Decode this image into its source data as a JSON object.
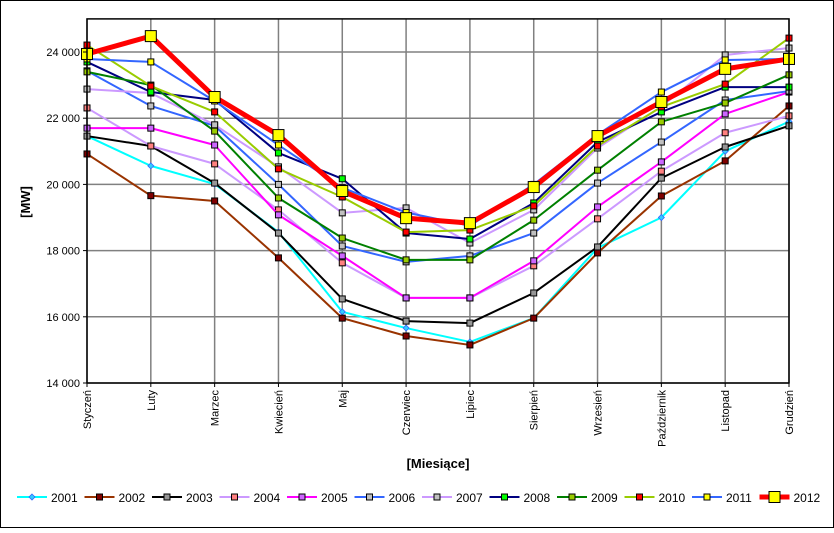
{
  "chart_data": {
    "type": "line",
    "title": "",
    "xlabel": "[Miesiące]",
    "ylabel": "[MW]",
    "ylim": [
      14000,
      25000
    ],
    "yticks": [
      14000,
      16000,
      18000,
      20000,
      22000,
      24000
    ],
    "ytick_labels": [
      "14 000",
      "16 000",
      "18 000",
      "20 000",
      "22 000",
      "24 000"
    ],
    "grid": true,
    "legend_position": "bottom",
    "categories": [
      "Styczeń",
      "Luty",
      "Marzec",
      "Kwiecień",
      "Maj",
      "Czerwiec",
      "Lipiec",
      "Sierpień",
      "Wrzesień",
      "Październik",
      "Listopad",
      "Grudzień"
    ],
    "series": [
      {
        "name": "2001",
        "line": "#00ffff",
        "marker": "#33ccff",
        "shape": "diamond",
        "width": 2,
        "values": [
          21460,
          20560,
          20010,
          18560,
          16150,
          15660,
          15240,
          15960,
          18080,
          19000,
          21000,
          21900
        ]
      },
      {
        "name": "2002",
        "line": "#993300",
        "marker": "#800000",
        "shape": "square",
        "width": 2,
        "values": [
          20920,
          19660,
          19500,
          17780,
          15960,
          15420,
          15150,
          15960,
          17930,
          19650,
          20710,
          22370
        ]
      },
      {
        "name": "2003",
        "line": "#000000",
        "marker": "#969696",
        "shape": "square",
        "width": 2,
        "values": [
          21460,
          21160,
          20040,
          18530,
          16540,
          15870,
          15810,
          16720,
          18110,
          20190,
          21130,
          21770
        ]
      },
      {
        "name": "2004",
        "line": "#cc99ff",
        "marker": "#ff8080",
        "shape": "square",
        "width": 2,
        "values": [
          22310,
          21160,
          20620,
          19230,
          17630,
          16570,
          16570,
          17540,
          18960,
          20400,
          21560,
          22070
        ]
      },
      {
        "name": "2005",
        "line": "#ff00ff",
        "marker": "#cc66ff",
        "shape": "square",
        "width": 2,
        "values": [
          21700,
          21700,
          21190,
          19080,
          17840,
          16570,
          16570,
          17690,
          19320,
          20680,
          22130,
          22790
        ]
      },
      {
        "name": "2006",
        "line": "#3366ff",
        "marker": "#c0c0c0",
        "shape": "square",
        "width": 2,
        "values": [
          23430,
          22370,
          21770,
          20000,
          18140,
          17660,
          17840,
          18530,
          20040,
          21280,
          22550,
          22820
        ]
      },
      {
        "name": "2007",
        "line": "#cc99ff",
        "marker": "#c0c0c0",
        "shape": "square",
        "width": 2,
        "values": [
          22880,
          22760,
          21800,
          20530,
          19140,
          19290,
          18230,
          19230,
          21100,
          22350,
          23910,
          24120
        ]
      },
      {
        "name": "2008",
        "line": "#000080",
        "marker": "#00ff00",
        "shape": "square",
        "width": 2,
        "values": [
          23700,
          22790,
          22550,
          20950,
          20170,
          18530,
          18350,
          19440,
          21280,
          22190,
          22940,
          22940
        ]
      },
      {
        "name": "2009",
        "line": "#008000",
        "marker": "#99cc00",
        "shape": "square",
        "width": 2,
        "values": [
          23400,
          23000,
          21610,
          19590,
          18380,
          17720,
          17720,
          18920,
          20430,
          21890,
          22460,
          23310
        ]
      },
      {
        "name": "2010",
        "line": "#99cc00",
        "marker": "#ff0000",
        "shape": "square",
        "width": 2,
        "values": [
          24210,
          22970,
          22190,
          20470,
          19620,
          18560,
          18620,
          19350,
          21160,
          22340,
          23030,
          24420
        ]
      },
      {
        "name": "2011",
        "line": "#3366ff",
        "marker": "#ffff00",
        "shape": "square",
        "width": 2,
        "values": [
          23790,
          23700,
          22520,
          21190,
          19900,
          19150,
          18750,
          20000,
          21500,
          22790,
          23760,
          23790
        ]
      },
      {
        "name": "2012",
        "line": "#ff0000",
        "marker": "#ffff00",
        "shape": "bigsquare",
        "width": 5,
        "values": [
          23940,
          24480,
          22640,
          21490,
          19800,
          18980,
          18830,
          19920,
          21460,
          22490,
          23490,
          23790
        ]
      }
    ]
  }
}
